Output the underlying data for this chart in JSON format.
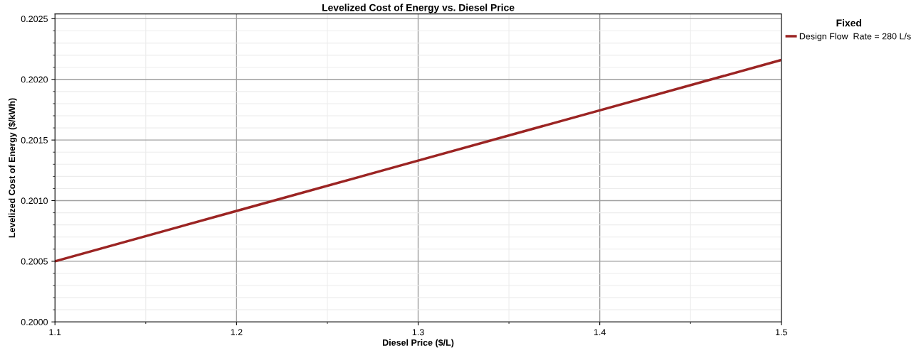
{
  "chart_data": {
    "type": "line",
    "title": "Levelized Cost of Energy vs. Diesel Price",
    "xlabel": "Diesel Price ($/L)",
    "ylabel": "Levelized Cost of Energy ($/kWh)",
    "legend_title": "Fixed",
    "x": [
      1.1,
      1.2,
      1.3,
      1.4,
      1.5
    ],
    "series": [
      {
        "name": "Design Flow  Rate = 280 L/s",
        "color": "#9b2423",
        "values": [
          0.2005,
          0.200915,
          0.20133,
          0.201745,
          0.20216
        ]
      }
    ],
    "xlim": [
      1.1,
      1.5
    ],
    "xticks": [
      1.1,
      1.2,
      1.3,
      1.4,
      1.5
    ],
    "ylim": [
      0.2,
      0.20254
    ],
    "yticks": [
      {
        "value": 0.2,
        "label": "0.2000"
      },
      {
        "value": 0.2005,
        "label": "0.2005"
      },
      {
        "value": 0.201,
        "label": "0.2010"
      },
      {
        "value": 0.2015,
        "label": "0.2015"
      },
      {
        "value": 0.202,
        "label": "0.2020"
      },
      {
        "value": 0.2025,
        "label": "0.2025"
      }
    ],
    "grid": true,
    "legend": "top right",
    "marker": "none",
    "line_style": "solid"
  }
}
